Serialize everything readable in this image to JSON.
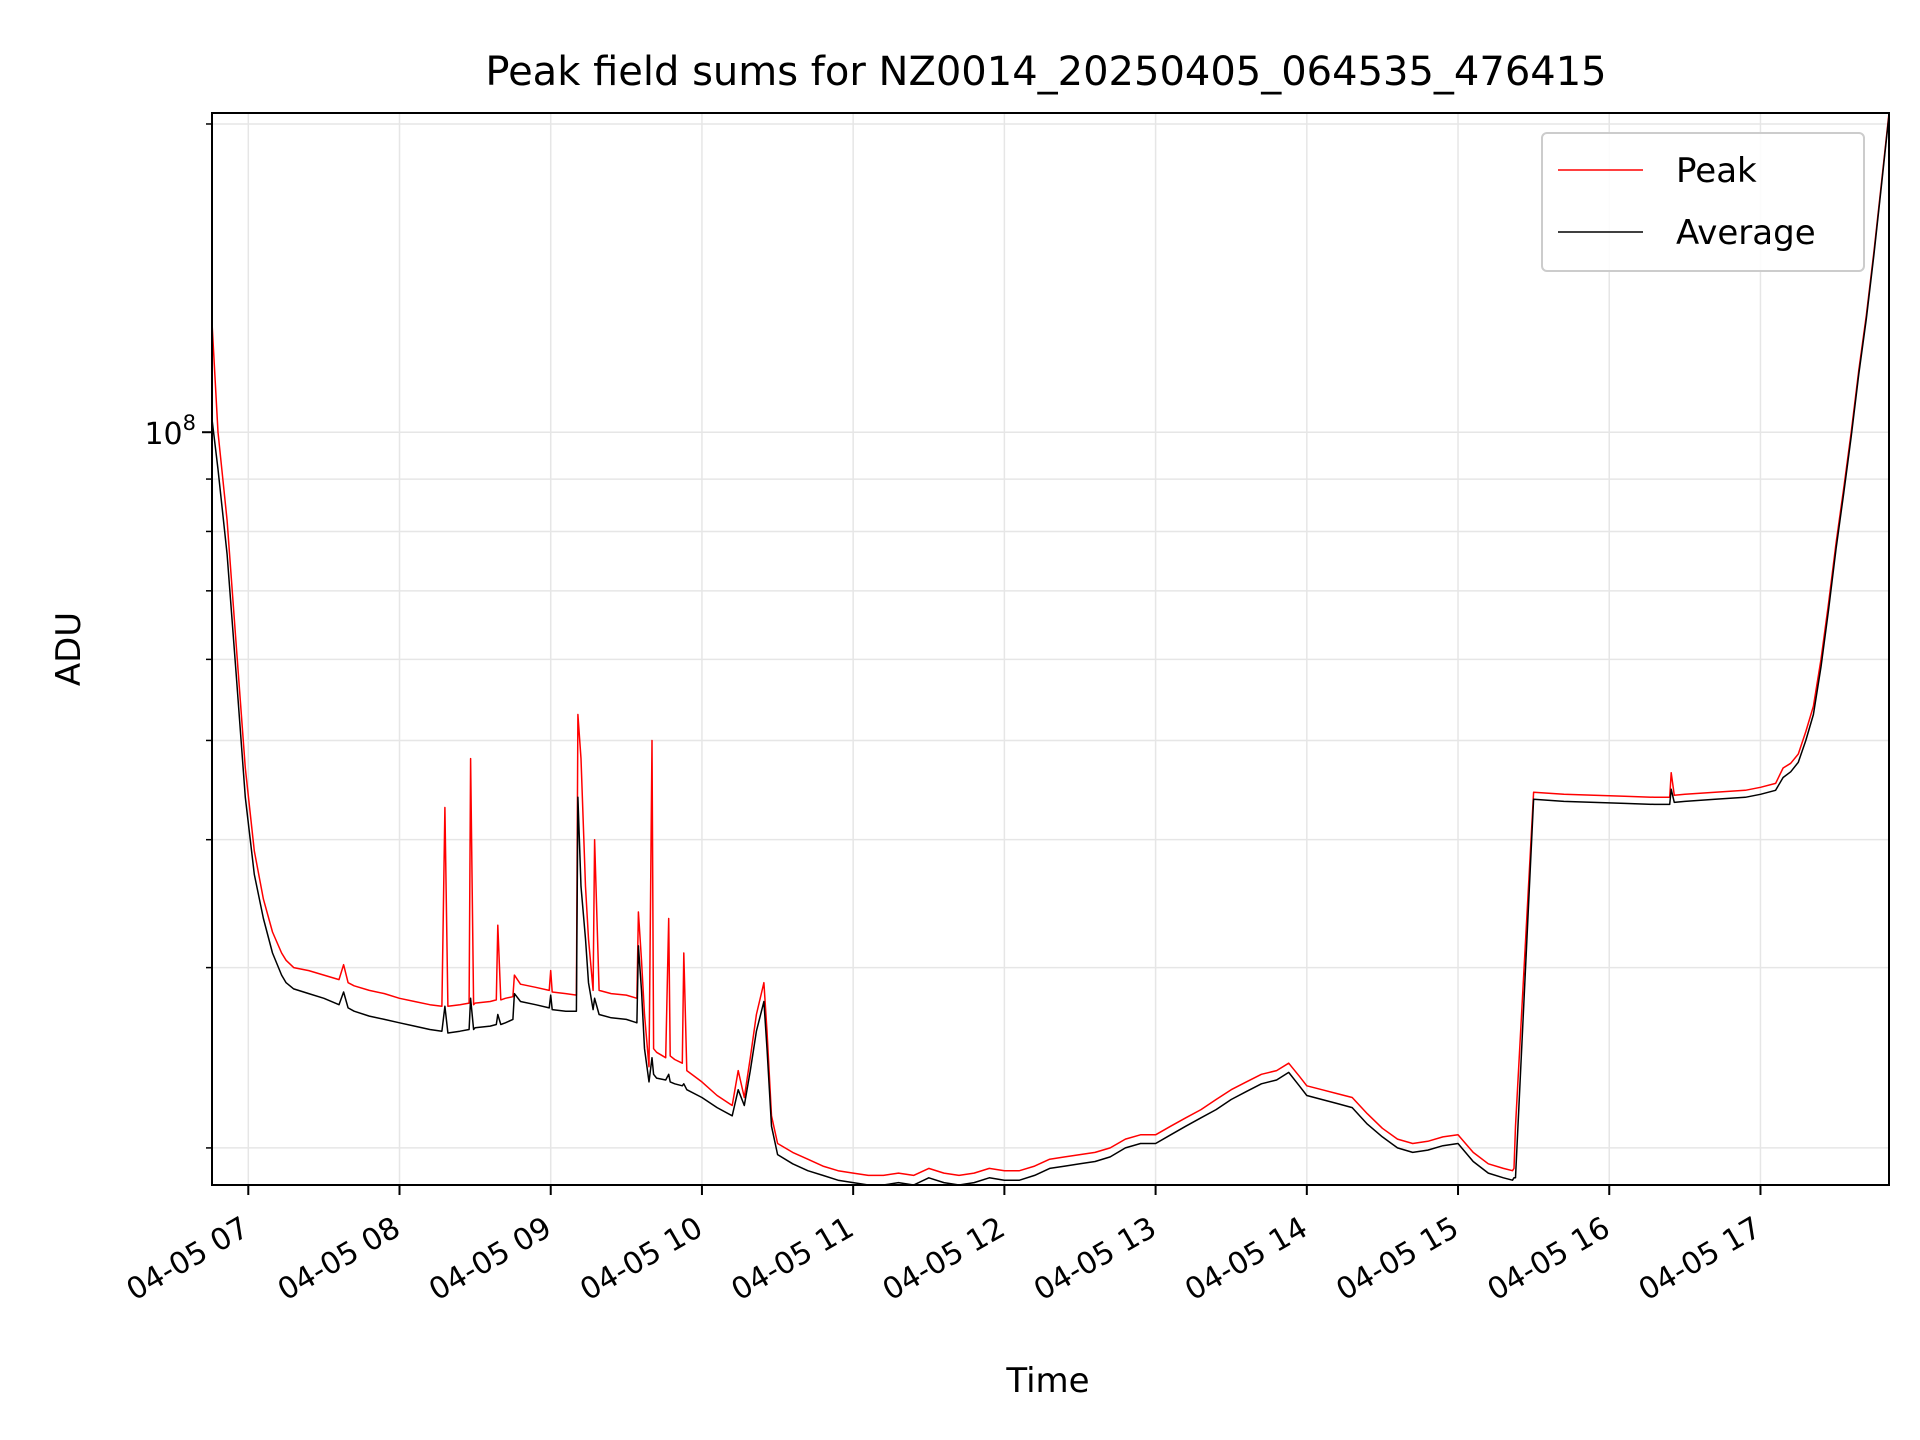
{
  "chart_data": {
    "type": "line",
    "title": "Peak field sums for NZ0014_20250405_064535_476415",
    "xlabel": "Time",
    "ylabel": "ADU",
    "x_unit": "hours (local clock, 2025-04-05)",
    "xlim": [
      6.76,
      17.85
    ],
    "ylim": [
      18400000,
      205000000
    ],
    "y_scale": "log",
    "grid": true,
    "legend_position": "top-right",
    "x_tick_labels": [
      "04-05 07",
      "04-05 08",
      "04-05 09",
      "04-05 10",
      "04-05 11",
      "04-05 12",
      "04-05 13",
      "04-05 14",
      "04-05 15",
      "04-05 16",
      "04-05 17"
    ],
    "x_tick_values": [
      7,
      8,
      9,
      10,
      11,
      12,
      13,
      14,
      15,
      16,
      17
    ],
    "y_major_tick_label": "10",
    "y_major_tick_exp": "8",
    "y_major_tick_value": 100000000,
    "y_minor_ticks": [
      20000000,
      30000000,
      40000000,
      50000000,
      60000000,
      70000000,
      80000000,
      90000000,
      200000000
    ],
    "series": [
      {
        "name": "Peak",
        "color": "#ff0000",
        "x": [
          6.76,
          6.8,
          6.86,
          6.92,
          6.98,
          7.04,
          7.1,
          7.16,
          7.22,
          7.25,
          7.3,
          7.4,
          7.5,
          7.6,
          7.63,
          7.66,
          7.7,
          7.8,
          7.9,
          8.0,
          8.1,
          8.2,
          8.28,
          8.3,
          8.32,
          8.4,
          8.46,
          8.47,
          8.49,
          8.5,
          8.6,
          8.64,
          8.65,
          8.67,
          8.7,
          8.75,
          8.76,
          8.8,
          8.9,
          8.99,
          9.0,
          9.01,
          9.1,
          9.17,
          9.18,
          9.2,
          9.23,
          9.25,
          9.28,
          9.29,
          9.32,
          9.4,
          9.5,
          9.57,
          9.58,
          9.6,
          9.62,
          9.65,
          9.67,
          9.68,
          9.7,
          9.76,
          9.78,
          9.79,
          9.82,
          9.87,
          9.88,
          9.9,
          10.0,
          10.1,
          10.2,
          10.24,
          10.28,
          10.32,
          10.36,
          10.41,
          10.43,
          10.46,
          10.5,
          10.6,
          10.7,
          10.8,
          10.9,
          11.0,
          11.1,
          11.2,
          11.3,
          11.4,
          11.5,
          11.6,
          11.7,
          11.8,
          11.9,
          12.0,
          12.1,
          12.2,
          12.3,
          12.4,
          12.5,
          12.6,
          12.7,
          12.8,
          12.9,
          13.0,
          13.1,
          13.2,
          13.3,
          13.4,
          13.5,
          13.6,
          13.7,
          13.8,
          13.88,
          13.95,
          14.0,
          14.1,
          14.2,
          14.3,
          14.4,
          14.5,
          14.6,
          14.7,
          14.8,
          14.9,
          15.0,
          15.1,
          15.2,
          15.3,
          15.36,
          15.37,
          15.38,
          15.5,
          15.7,
          15.9,
          16.1,
          16.3,
          16.4,
          16.41,
          16.43,
          16.5,
          16.7,
          16.9,
          17.0,
          17.1,
          17.15,
          17.2,
          17.25,
          17.3,
          17.35,
          17.4,
          17.45,
          17.5,
          17.55,
          17.6,
          17.65,
          17.7,
          17.75,
          17.8,
          17.85
        ],
        "values": [
          128000000,
          100000000,
          82000000,
          62000000,
          47000000,
          39000000,
          35000000,
          32500000,
          31000000,
          30500000,
          30000000,
          29800000,
          29500000,
          29200000,
          30200000,
          29000000,
          28800000,
          28500000,
          28300000,
          28000000,
          27800000,
          27600000,
          27500000,
          43000000,
          27500000,
          27600000,
          27700000,
          48000000,
          27600000,
          27700000,
          27800000,
          27900000,
          33000000,
          27900000,
          28000000,
          28100000,
          29500000,
          28900000,
          28700000,
          28500000,
          29800000,
          28400000,
          28300000,
          28200000,
          53000000,
          48000000,
          36000000,
          32000000,
          28500000,
          40000000,
          28500000,
          28300000,
          28200000,
          28000000,
          34000000,
          30500000,
          27000000,
          24000000,
          50000000,
          25000000,
          24800000,
          24500000,
          33500000,
          24600000,
          24400000,
          24200000,
          31000000,
          23800000,
          23200000,
          22500000,
          22000000,
          23800000,
          22400000,
          24500000,
          27000000,
          29000000,
          26000000,
          21500000,
          20200000,
          19800000,
          19500000,
          19200000,
          19000000,
          18900000,
          18800000,
          18800000,
          18900000,
          18800000,
          19100000,
          18900000,
          18800000,
          18900000,
          19100000,
          19000000,
          19000000,
          19200000,
          19500000,
          19600000,
          19700000,
          19800000,
          20000000,
          20400000,
          20600000,
          20600000,
          21000000,
          21400000,
          21800000,
          22300000,
          22800000,
          23200000,
          23600000,
          23800000,
          24200000,
          23500000,
          23000000,
          22800000,
          22600000,
          22400000,
          21600000,
          20900000,
          20400000,
          20200000,
          20300000,
          20500000,
          20600000,
          19800000,
          19300000,
          19100000,
          19000000,
          19100000,
          21000000,
          44500000,
          44300000,
          44200000,
          44100000,
          44000000,
          44000000,
          46500000,
          44200000,
          44300000,
          44500000,
          44700000,
          45000000,
          45400000,
          47000000,
          47500000,
          48500000,
          51000000,
          54000000,
          60000000,
          68000000,
          78000000,
          88000000,
          100000000,
          115000000,
          130000000,
          150000000,
          175000000,
          205000000
        ]
      },
      {
        "name": "Average",
        "color": "#000000",
        "x": [
          6.76,
          6.8,
          6.86,
          6.92,
          6.98,
          7.04,
          7.1,
          7.16,
          7.22,
          7.25,
          7.3,
          7.4,
          7.5,
          7.6,
          7.63,
          7.66,
          7.7,
          7.8,
          7.9,
          8.0,
          8.1,
          8.2,
          8.28,
          8.3,
          8.32,
          8.4,
          8.46,
          8.47,
          8.49,
          8.5,
          8.6,
          8.64,
          8.65,
          8.67,
          8.7,
          8.75,
          8.76,
          8.8,
          8.9,
          8.99,
          9.0,
          9.01,
          9.1,
          9.17,
          9.18,
          9.2,
          9.23,
          9.25,
          9.28,
          9.29,
          9.32,
          9.4,
          9.5,
          9.57,
          9.58,
          9.6,
          9.62,
          9.65,
          9.67,
          9.68,
          9.7,
          9.76,
          9.78,
          9.79,
          9.82,
          9.87,
          9.88,
          9.9,
          10.0,
          10.1,
          10.2,
          10.24,
          10.28,
          10.32,
          10.36,
          10.41,
          10.43,
          10.46,
          10.5,
          10.6,
          10.7,
          10.8,
          10.9,
          11.0,
          11.1,
          11.2,
          11.3,
          11.4,
          11.5,
          11.6,
          11.7,
          11.8,
          11.9,
          12.0,
          12.1,
          12.2,
          12.3,
          12.4,
          12.5,
          12.6,
          12.7,
          12.8,
          12.9,
          13.0,
          13.1,
          13.2,
          13.3,
          13.4,
          13.5,
          13.6,
          13.7,
          13.8,
          13.88,
          13.95,
          14.0,
          14.1,
          14.2,
          14.3,
          14.4,
          14.5,
          14.6,
          14.7,
          14.8,
          14.9,
          15.0,
          15.1,
          15.2,
          15.3,
          15.36,
          15.37,
          15.38,
          15.5,
          15.7,
          15.9,
          16.1,
          16.3,
          16.4,
          16.41,
          16.43,
          16.5,
          16.7,
          16.9,
          17.0,
          17.1,
          17.15,
          17.2,
          17.25,
          17.3,
          17.35,
          17.4,
          17.45,
          17.5,
          17.55,
          17.6,
          17.65,
          17.7,
          17.75,
          17.8,
          17.85
        ],
        "values": [
          103000000,
          92000000,
          76000000,
          58000000,
          44000000,
          37000000,
          33500000,
          31000000,
          29500000,
          29000000,
          28600000,
          28300000,
          28000000,
          27600000,
          28400000,
          27400000,
          27200000,
          26900000,
          26700000,
          26500000,
          26300000,
          26100000,
          26000000,
          27500000,
          25900000,
          26000000,
          26100000,
          28000000,
          26100000,
          26200000,
          26300000,
          26400000,
          27000000,
          26400000,
          26500000,
          26700000,
          28300000,
          27800000,
          27600000,
          27400000,
          28200000,
          27300000,
          27200000,
          27200000,
          44000000,
          36000000,
          32000000,
          29000000,
          27300000,
          28000000,
          27000000,
          26800000,
          26700000,
          26500000,
          31500000,
          28500000,
          25000000,
          23200000,
          24500000,
          23600000,
          23400000,
          23300000,
          23600000,
          23200000,
          23100000,
          23000000,
          23100000,
          22800000,
          22400000,
          21900000,
          21500000,
          22800000,
          22000000,
          23800000,
          26000000,
          27800000,
          25000000,
          21000000,
          19700000,
          19300000,
          19000000,
          18800000,
          18600000,
          18500000,
          18400000,
          18400000,
          18500000,
          18400000,
          18700000,
          18500000,
          18400000,
          18500000,
          18700000,
          18600000,
          18600000,
          18800000,
          19100000,
          19200000,
          19300000,
          19400000,
          19600000,
          20000000,
          20200000,
          20200000,
          20600000,
          21000000,
          21400000,
          21800000,
          22300000,
          22700000,
          23100000,
          23300000,
          23700000,
          23000000,
          22500000,
          22300000,
          22100000,
          21900000,
          21100000,
          20500000,
          20000000,
          19800000,
          19900000,
          20100000,
          20200000,
          19400000,
          18900000,
          18700000,
          18600000,
          18700000,
          18700000,
          43800000,
          43600000,
          43500000,
          43400000,
          43300000,
          43300000,
          44800000,
          43500000,
          43600000,
          43800000,
          44000000,
          44300000,
          44700000,
          46000000,
          46600000,
          47600000,
          50000000,
          53000000,
          59000000,
          67000000,
          77000000,
          87000000,
          99000000,
          114000000,
          129000000,
          149000000,
          174000000,
          204000000
        ]
      }
    ]
  }
}
